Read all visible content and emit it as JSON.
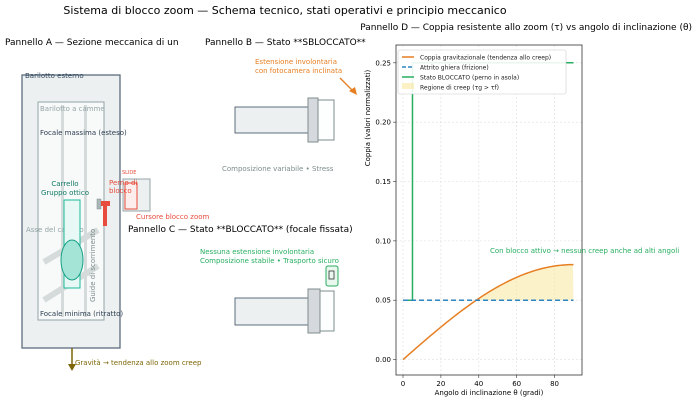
{
  "figure_title": "Sistema di blocco zoom — Schema tecnico, stati operativi e principio meccanico",
  "panel_a": {
    "title": "Pannello A — Sezione meccanica di un",
    "outer_barrel": "Barilotto esterno",
    "cam_barrel": "Barilotto a camme",
    "guides": "Guide di scorrimento",
    "max_focal": "Focale massima (esteso)",
    "carriage_line1": "Carrello",
    "carriage_line2": "Gruppo ottico",
    "axis_label": "Asse del carrello",
    "slide_label": "SLIDE",
    "pin_line1": "Perno di",
    "pin_line2": "blocco",
    "slider_label": "Cursore blocco zoom",
    "min_focal": "Focale minima (ritratto)",
    "gravity": "Gravità → tendenza allo zoom creep"
  },
  "panel_b": {
    "title": "Pannello B — Stato **SBLOCCATO**",
    "warning_line1": "Estensione involontaria",
    "warning_line2": "con fotocamera inclinata",
    "note": "Composizione variabile • Stress"
  },
  "panel_c": {
    "title": "Pannello C — Stato **BLOCCATO** (focale fissata)",
    "note_line1": "Nessuna estensione involontaria",
    "note_line2": "Composizione stabile • Trasporto sicuro",
    "lock_icon": "lock-icon"
  },
  "colors": {
    "gravity": "#e67e22",
    "friction": "#2e86c1",
    "locked": "#27ae60",
    "creep": "#f9e79f",
    "lock_red": "#e74c3c",
    "arrow": "#7d6608"
  },
  "chart_data": {
    "type": "line",
    "title": "Pannello D — Coppia resistente allo zoom (τ) vs angolo di inclinazione (θ)",
    "xlabel": "Angolo di inclinazione θ (gradi)",
    "ylabel": "Coppia (valori normalizzati)",
    "xlim": [
      -3.7,
      94.5
    ],
    "ylim": [
      -0.013,
      0.265
    ],
    "xticks": [
      0,
      20,
      40,
      60,
      80
    ],
    "yticks": [
      0.0,
      0.05,
      0.1,
      0.15,
      0.2,
      0.25
    ],
    "ytick_labels": [
      "0.00",
      "0.05",
      "0.10",
      "0.15",
      "0.20",
      "0.25"
    ],
    "grid": true,
    "legend_placement": "top-left",
    "series": [
      {
        "name": "Coppia gravitazionale (tendenza allo creep)",
        "style": "solid",
        "x": [
          0,
          10,
          20,
          30,
          40,
          50,
          60,
          70,
          80,
          90
        ],
        "y": [
          0,
          0.0139,
          0.0274,
          0.04,
          0.0514,
          0.0613,
          0.0693,
          0.0752,
          0.0788,
          0.08
        ]
      },
      {
        "name": "Attrito ghiera (frizione)",
        "style": "dashed",
        "x": [
          0,
          90
        ],
        "y": [
          0.05,
          0.05
        ]
      },
      {
        "name": "Stato BLOCCATO (perno in asola)",
        "style": "solid",
        "x": [
          0,
          5,
          5,
          90
        ],
        "y": [
          0.05,
          0.05,
          0.25,
          0.25
        ]
      }
    ],
    "fill": {
      "name": "Regione di creep (τg > τf)",
      "from_x": 38.7,
      "to_x": 90
    },
    "annotation": "Con blocco attivo → nessun creep anche ad alti angoli"
  }
}
